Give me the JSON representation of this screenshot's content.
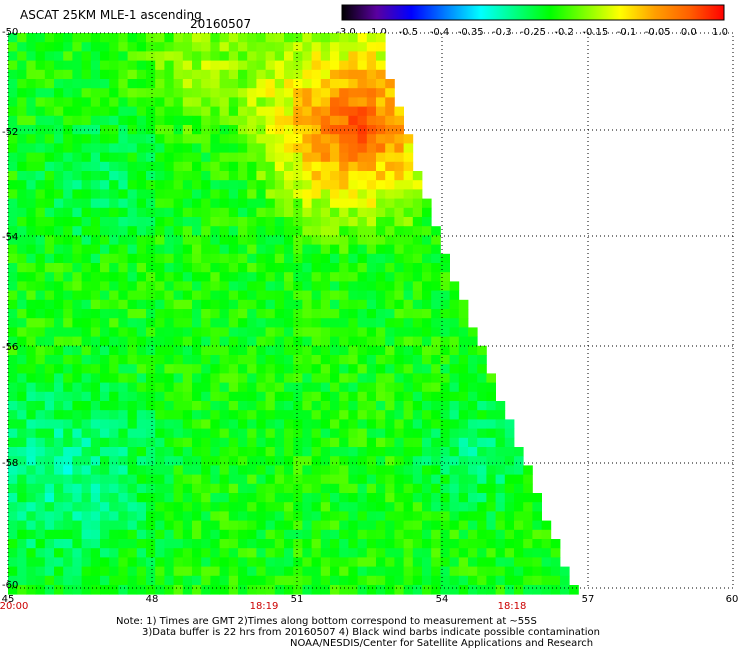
{
  "header": {
    "title": "ASCAT 25KM MLE-1 ascending",
    "date": "20160507"
  },
  "colorbar": {
    "ticks": [
      "-3.0",
      "-1.0",
      "-0.5",
      "-0.4",
      "-0.35",
      "-0.3",
      "-0.25",
      "-0.2",
      "-0.15",
      "-0.1",
      "-0.05",
      "0.0",
      "1.0"
    ],
    "colors": [
      "#000000",
      "#5a00a0",
      "#0000ff",
      "#0080ff",
      "#00ffff",
      "#00ff80",
      "#00ff00",
      "#80ff00",
      "#ffff00",
      "#ffa000",
      "#ff6000",
      "#ff0000"
    ]
  },
  "axes": {
    "y_labels": [
      "-50",
      "-52",
      "-54",
      "-56",
      "-58",
      "-60"
    ],
    "x_labels": [
      "45",
      "48",
      "51",
      "54",
      "57",
      "60"
    ],
    "times": [
      "20:00",
      "18:19",
      "18:18"
    ]
  },
  "footer": {
    "line1": "Note: 1) Times are GMT 2)Times along bottom correspond to measurement at ~55S",
    "line2": "3)Data buffer is 22 hrs from 20160507 4) Black wind barbs indicate possible contamination",
    "line3": "NOAA/NESDIS/Center for Satellite Applications and Research"
  }
}
